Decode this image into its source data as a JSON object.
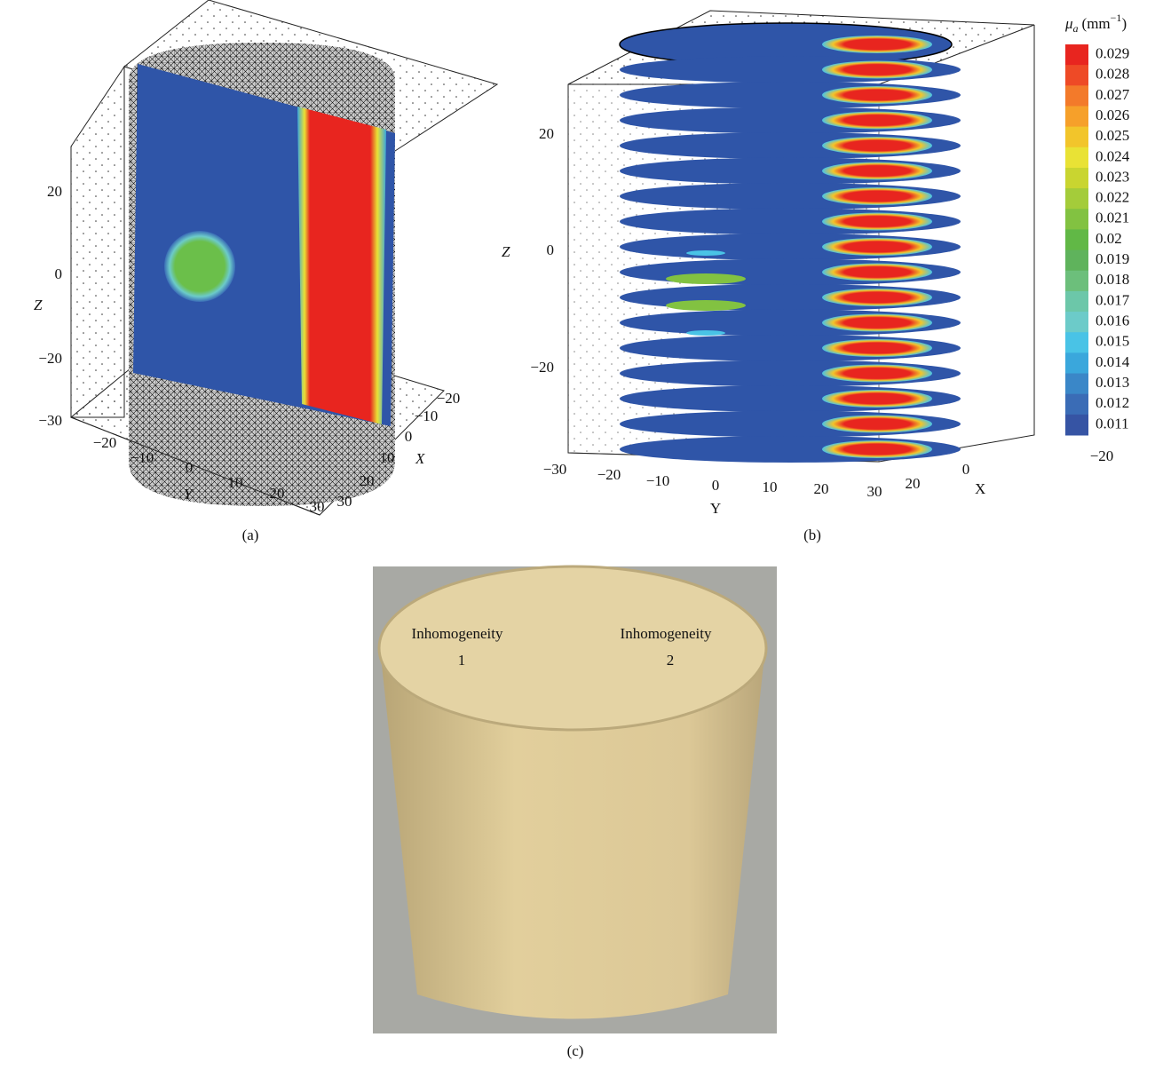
{
  "panel_a": {
    "caption": "(a)",
    "z_label": "Z",
    "y_label": "Y",
    "x_label": "X",
    "z_ticks": [
      "20",
      "0",
      "−20",
      "−30"
    ],
    "y_ticks": [
      "−20",
      "−10",
      "0",
      "10",
      "20",
      "30"
    ],
    "x_ticks": [
      "−20",
      "−10",
      "0",
      "10",
      "20",
      "30"
    ]
  },
  "panel_b": {
    "caption": "(b)",
    "z_label": "Z",
    "y_label": "Y",
    "x_label": "X",
    "z_ticks": [
      "20",
      "0",
      "−20"
    ],
    "y_ticks": [
      "−30",
      "−20",
      "−10",
      "0",
      "10",
      "20",
      "30"
    ],
    "x_ticks": [
      "−20",
      "0",
      "20"
    ],
    "colorbar": {
      "symbol": "μ",
      "subscript": "a",
      "unit": "(mm",
      "exponent": "−1",
      "unit_close": ")",
      "labels": [
        "0.029",
        "0.028",
        "0.027",
        "0.026",
        "0.025",
        "0.024",
        "0.023",
        "0.022",
        "0.021",
        "0.02",
        "0.019",
        "0.018",
        "0.017",
        "0.016",
        "0.015",
        "0.014",
        "0.013",
        "0.012",
        "0.011"
      ],
      "colors": [
        "#e8251f",
        "#ee4a26",
        "#f37a2a",
        "#f6a02a",
        "#f2c52b",
        "#e9e235",
        "#c9d530",
        "#a4cc3a",
        "#82c241",
        "#61b846",
        "#5fb35c",
        "#6cbf7b",
        "#6cc7a9",
        "#6ccbc9",
        "#49c3e6",
        "#3aa7dc",
        "#3a87c8",
        "#3a6cb6",
        "#3654a4"
      ]
    }
  },
  "panel_c": {
    "caption": "(c)",
    "labels": [
      {
        "name": "Inhomogeneity",
        "number": "1"
      },
      {
        "name": "Inhomogeneity",
        "number": "2"
      }
    ]
  }
}
